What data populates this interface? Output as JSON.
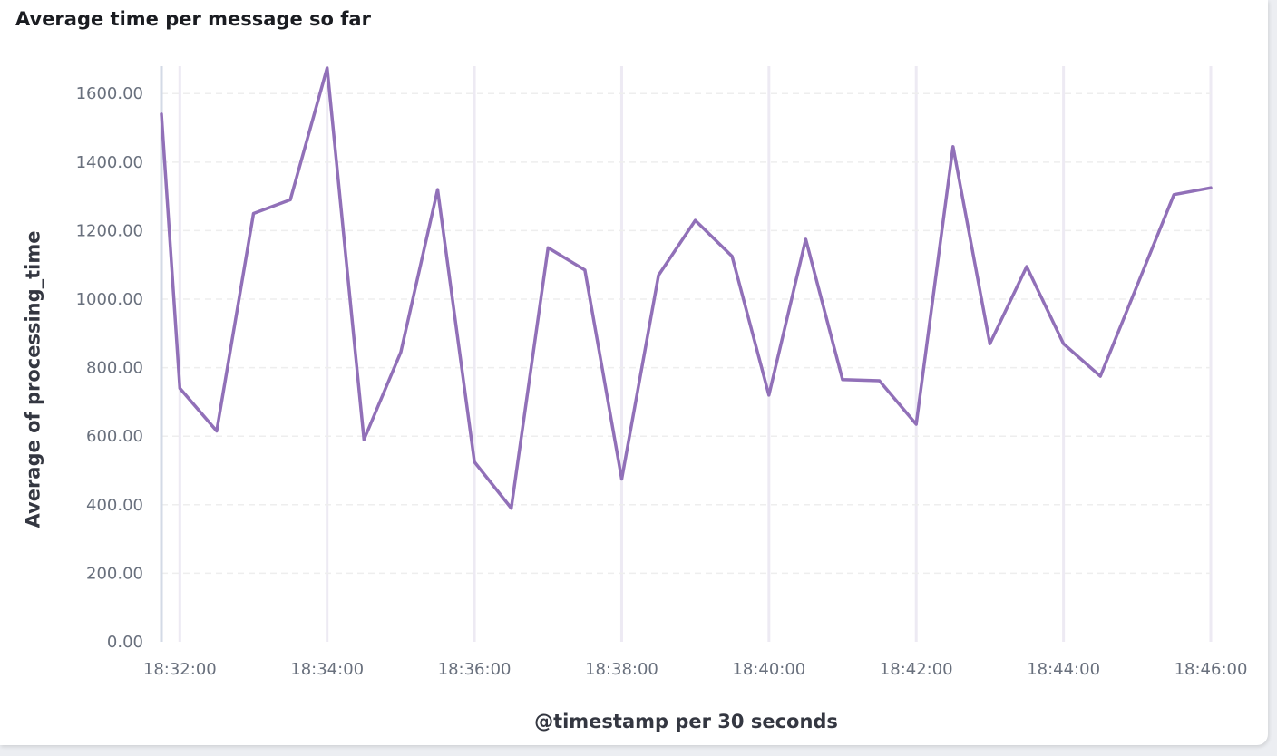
{
  "panel": {
    "title": "Average time per message so far"
  },
  "colors": {
    "series_line": "#9170b8",
    "grid_vertical": "#edeaf3",
    "grid_horizontal": "#eeeeee",
    "axis_line": "#d3dae6",
    "tick_label": "#69707d",
    "axis_title": "#343741"
  },
  "chart_data": {
    "type": "line",
    "title": "Average time per message so far",
    "xlabel": "@timestamp per 30 seconds",
    "ylabel": "Average of processing_time",
    "x_ticks": [
      "18:32:00",
      "18:34:00",
      "18:36:00",
      "18:38:00",
      "18:40:00",
      "18:42:00",
      "18:44:00",
      "18:46:00"
    ],
    "y_ticks": [
      "0.00",
      "200.00",
      "400.00",
      "600.00",
      "800.00",
      "1000.00",
      "1200.00",
      "1400.00",
      "1600.00"
    ],
    "ylim": [
      0,
      1680
    ],
    "xlim": [
      "18:31:45",
      "18:46:00"
    ],
    "grid": true,
    "legend": "none",
    "series": [
      {
        "x": [
          "18:31:45",
          "18:32:00",
          "18:32:30",
          "18:33:00",
          "18:33:30",
          "18:34:00",
          "18:34:30",
          "18:35:00",
          "18:35:30",
          "18:36:00",
          "18:36:30",
          "18:37:00",
          "18:37:30",
          "18:38:00",
          "18:38:30",
          "18:39:00",
          "18:39:30",
          "18:40:00",
          "18:40:30",
          "18:41:00",
          "18:41:30",
          "18:42:00",
          "18:42:30",
          "18:43:00",
          "18:43:30",
          "18:44:00",
          "18:44:30",
          "18:45:00",
          "18:45:30",
          "18:46:00"
        ],
        "values": [
          1540,
          740,
          615,
          1250,
          1290,
          1675,
          590,
          845,
          1320,
          525,
          390,
          1150,
          1085,
          475,
          1070,
          1230,
          1125,
          720,
          1175,
          765,
          762,
          635,
          1445,
          870,
          1095,
          870,
          775,
          1040,
          1305,
          1325
        ]
      }
    ]
  }
}
